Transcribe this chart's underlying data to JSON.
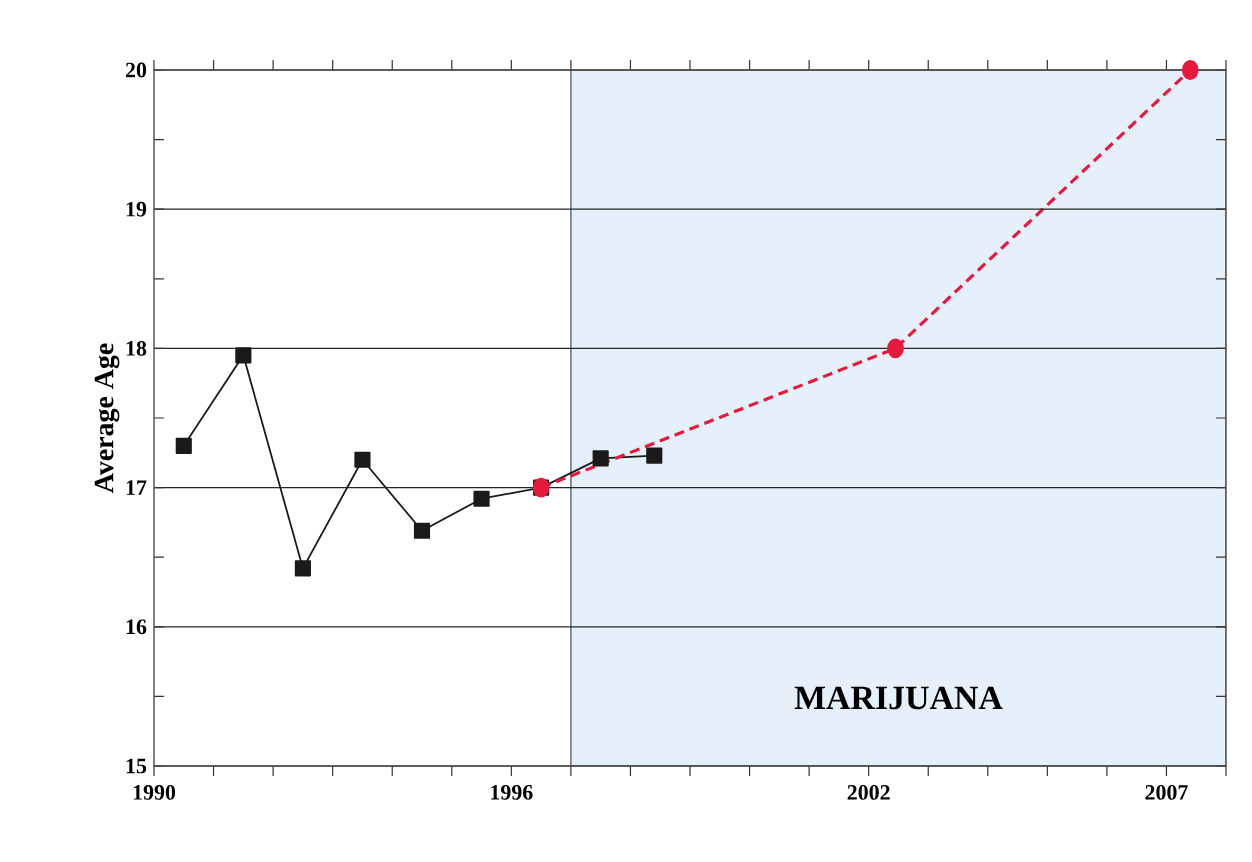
{
  "chart_data": {
    "type": "line",
    "ylabel": "Average Age",
    "xlim": [
      1990,
      2008
    ],
    "ylim": [
      15,
      20
    ],
    "xticks": [
      1990,
      {
        "value": 1991,
        "label": null
      },
      {
        "value": 1992,
        "label": null
      },
      {
        "value": 1993,
        "label": null
      },
      {
        "value": 1994,
        "label": null
      },
      {
        "value": 1995,
        "label": null
      },
      1996,
      {
        "value": 1997,
        "label": null
      },
      {
        "value": 1998,
        "label": null
      },
      {
        "value": 1999,
        "label": null
      },
      {
        "value": 2000,
        "label": null
      },
      {
        "value": 2001,
        "label": null
      },
      2002,
      {
        "value": 2003,
        "label": null
      },
      {
        "value": 2004,
        "label": null
      },
      {
        "value": 2005,
        "label": null
      },
      {
        "value": 2006,
        "label": null
      },
      2007,
      {
        "value": 2008,
        "label": null
      }
    ],
    "yticks": [
      15,
      {
        "value": 15.5,
        "label": null
      },
      16,
      {
        "value": 16.5,
        "label": null
      },
      17,
      {
        "value": 17.5,
        "label": null
      },
      18,
      {
        "value": 18.5,
        "label": null
      },
      19,
      {
        "value": 19.5,
        "label": null
      },
      20
    ],
    "grid": "y",
    "bands": [
      {
        "axis": "x",
        "from": 1997,
        "to": 2008,
        "label": "MARIJUANA",
        "color": "#e6f0fa"
      }
    ],
    "series": [
      {
        "color": "#1a1a1a",
        "marker": "square",
        "line_style": "solid",
        "x": [
          1990.5,
          1991.5,
          1992.5,
          1993.5,
          1994.5,
          1995.5,
          1996.5,
          1997.5,
          1998.4
        ],
        "values": [
          17.3,
          17.95,
          16.42,
          17.2,
          16.69,
          16.92,
          17.0,
          17.21,
          17.23
        ]
      },
      {
        "color": "#e8193c",
        "marker": "circle",
        "line_style": "dashed",
        "x": [
          1996.5,
          2002.45,
          2007.4
        ],
        "values": [
          17.0,
          18.0,
          20.0
        ]
      }
    ]
  }
}
